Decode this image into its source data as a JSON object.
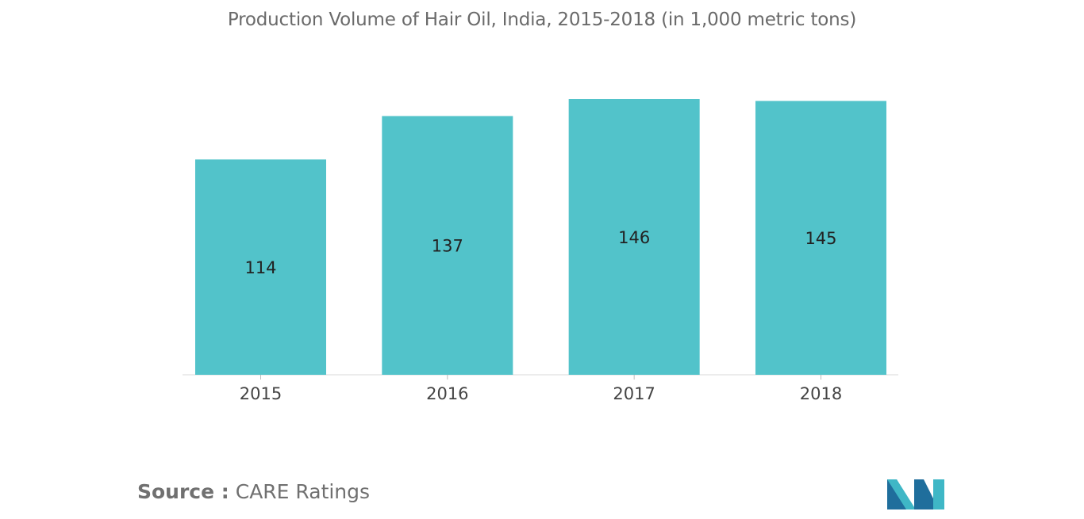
{
  "chart_data": {
    "type": "bar",
    "title": "Production Volume of Hair Oil, India, 2015-2018 (in 1,000 metric tons)",
    "categories": [
      "2015",
      "2016",
      "2017",
      "2018"
    ],
    "values": [
      114,
      137,
      146,
      145
    ],
    "value_labels": [
      "114",
      "137",
      "146",
      "145"
    ],
    "xlabel": "",
    "ylabel": "",
    "ylim": [
      0,
      146
    ],
    "grid": false,
    "legend": "none",
    "bar_color": "#52c3ca"
  },
  "source": {
    "label": "Source :",
    "text": "CARE Ratings"
  },
  "colors": {
    "bar": "#52c3ca",
    "title": "#6a6a6a",
    "logo_dark": "#1f6e9c",
    "logo_light": "#3fb7c6"
  }
}
